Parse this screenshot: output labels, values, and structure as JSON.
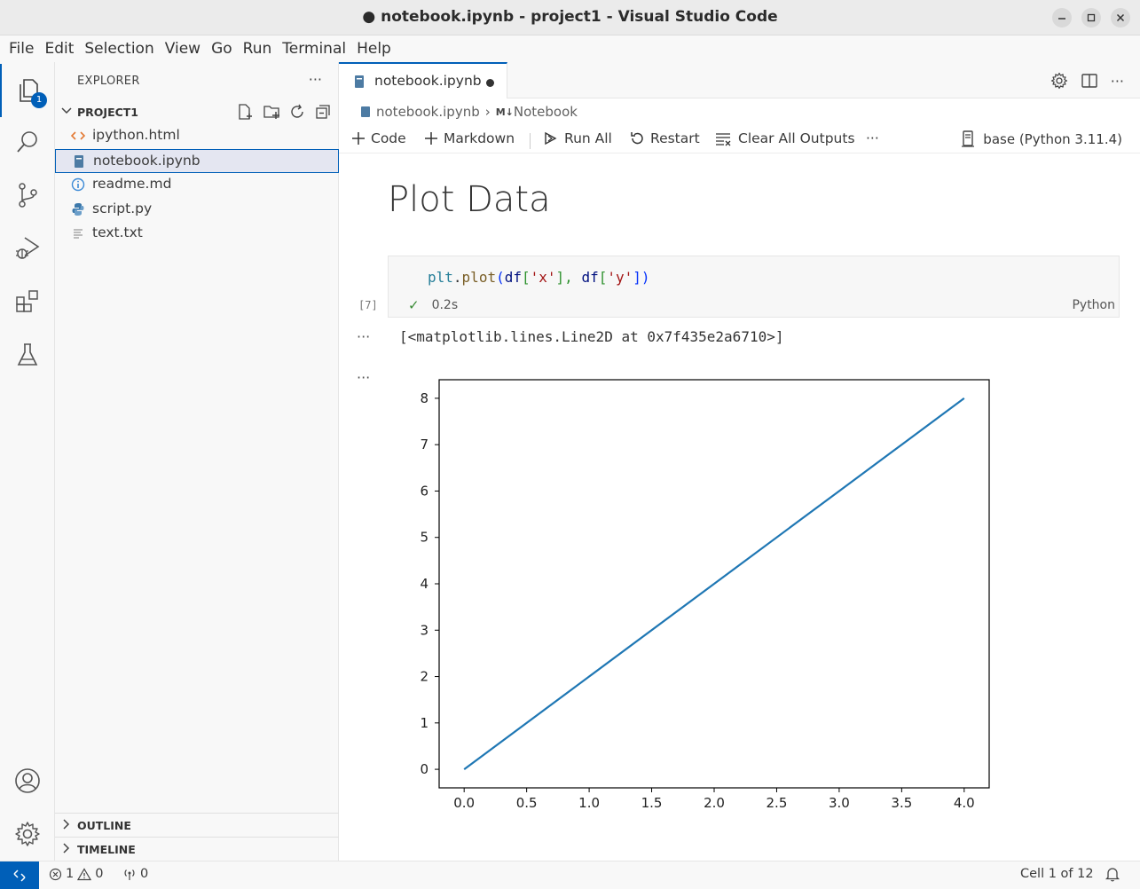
{
  "window": {
    "title": "● notebook.ipynb - project1 - Visual Studio Code"
  },
  "menu": [
    "File",
    "Edit",
    "Selection",
    "View",
    "Go",
    "Run",
    "Terminal",
    "Help"
  ],
  "activity_bar": {
    "items": [
      "explorer-icon",
      "search-icon",
      "source-control-icon",
      "run-debug-icon",
      "extensions-icon",
      "testing-icon"
    ],
    "explorer_badge": "1",
    "bottom": [
      "account-icon",
      "manage-gear-icon"
    ]
  },
  "explorer": {
    "title": "EXPLORER",
    "more": "···",
    "project": "PROJECT1",
    "files": [
      {
        "name": "ipython.html",
        "icon": "html-icon"
      },
      {
        "name": "notebook.ipynb",
        "icon": "notebook-icon",
        "selected": true
      },
      {
        "name": "readme.md",
        "icon": "info-icon"
      },
      {
        "name": "script.py",
        "icon": "python-icon"
      },
      {
        "name": "text.txt",
        "icon": "text-file-icon"
      }
    ],
    "outline": "OUTLINE",
    "timeline": "TIMELINE"
  },
  "editor": {
    "tab": {
      "name": "notebook.ipynb",
      "dirty": true
    },
    "breadcrumb": {
      "file": "notebook.ipynb",
      "separator": "›",
      "md_prefix": "M↓",
      "section": "Notebook"
    },
    "toolbar": {
      "add_code": "Code",
      "add_markdown": "Markdown",
      "run_all": "Run All",
      "restart": "Restart",
      "clear_outputs": "Clear All Outputs",
      "more": "···",
      "kernel": "base (Python 3.11.4)"
    },
    "markdown_heading": "Plot Data",
    "code_cell": {
      "execution_count": "[7]",
      "tokens": [
        "plt",
        ".",
        "plot",
        "(",
        "df",
        "[",
        "'x'",
        "], ",
        "df",
        "[",
        "'y'",
        "])"
      ],
      "status_icon": "✓",
      "duration": "0.2s",
      "language": "Python"
    },
    "output_dots": "···",
    "text_output": "[<matplotlib.lines.Line2D at 0x7f435e2a6710>]"
  },
  "chart_data": {
    "type": "line",
    "title": "",
    "xlabel": "",
    "ylabel": "",
    "x": [
      0,
      1,
      2,
      3,
      4
    ],
    "series": [
      {
        "values": [
          0,
          2,
          4,
          6,
          8
        ],
        "color": "#1f77b4"
      }
    ],
    "x_ticks": [
      "0.0",
      "0.5",
      "1.0",
      "1.5",
      "2.0",
      "2.5",
      "3.0",
      "3.5",
      "4.0"
    ],
    "y_ticks": [
      "0",
      "1",
      "2",
      "3",
      "4",
      "5",
      "6",
      "7",
      "8"
    ],
    "xlim": [
      -0.2,
      4.2
    ],
    "ylim": [
      -0.4,
      8.4
    ],
    "grid": false
  },
  "status_bar": {
    "errors": "1",
    "warnings": "0",
    "ports": "0",
    "cell_position": "Cell 1 of 12"
  },
  "colors": {
    "accent": "#005fb8",
    "line": "#1f77b4"
  }
}
